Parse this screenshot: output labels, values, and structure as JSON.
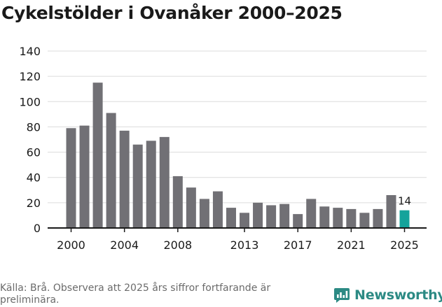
{
  "title": "Cykelstölder i Ovanåker 2000–2025",
  "source": "Källa: Brå. Observera att 2025 års siffror fortfarande är preliminära.",
  "brand": {
    "name": "Newsworthy",
    "icon": "newsworthy-logo-icon"
  },
  "colors": {
    "bar": "#717075",
    "highlight": "#15a39b",
    "grid": "#dcdcdc",
    "axis": "#1a1a1a",
    "brand": "#2c8a84"
  },
  "chart_data": {
    "type": "bar",
    "title": "Cykelstölder i Ovanåker 2000–2025",
    "xlabel": "",
    "ylabel": "",
    "ylim": [
      0,
      140
    ],
    "yticks": [
      0,
      20,
      40,
      60,
      80,
      100,
      120,
      140
    ],
    "x_tick_labels": [
      "2000",
      "2004",
      "2008",
      "2013",
      "2017",
      "2021",
      "2025"
    ],
    "grid": true,
    "categories": [
      "2000",
      "2001",
      "2002",
      "2003",
      "2004",
      "2005",
      "2006",
      "2007",
      "2008",
      "2009",
      "2010",
      "2011",
      "2012",
      "2013",
      "2014",
      "2015",
      "2016",
      "2017",
      "2018",
      "2019",
      "2020",
      "2021",
      "2022",
      "2023",
      "2024",
      "2025"
    ],
    "values": [
      79,
      81,
      115,
      91,
      77,
      66,
      69,
      72,
      41,
      32,
      23,
      29,
      16,
      12,
      20,
      18,
      19,
      11,
      23,
      17,
      16,
      15,
      12,
      15,
      26,
      14
    ],
    "highlight": {
      "category": "2025",
      "label": "14"
    }
  }
}
